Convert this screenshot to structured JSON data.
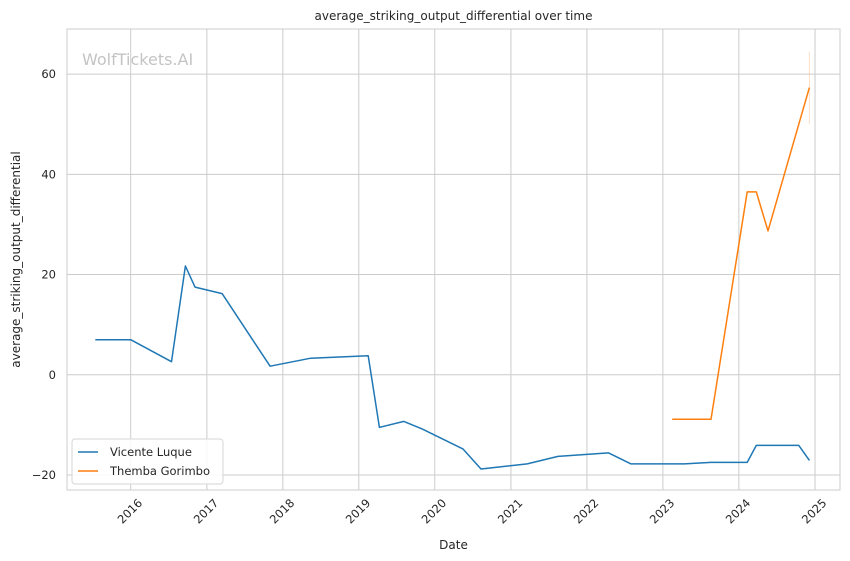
{
  "chart_data": {
    "type": "line",
    "title": "average_striking_output_differential over time",
    "xlabel": "Date",
    "ylabel": "average_striking_output_differential",
    "watermark": "WolfTickets.AI",
    "x_ticks": [
      "2016",
      "2017",
      "2018",
      "2019",
      "2020",
      "2021",
      "2022",
      "2023",
      "2024",
      "2025"
    ],
    "y_ticks": [
      -20,
      0,
      20,
      40,
      60
    ],
    "xlim": [
      "2015-03-01",
      "2025-05-01"
    ],
    "ylim": [
      -23,
      69
    ],
    "grid": true,
    "legend_position": "lower-left",
    "series": [
      {
        "name": "Vicente Luque",
        "color": "#1f77b4",
        "points": [
          [
            "2015-07-15",
            7.0
          ],
          [
            "2016-01-01",
            7.0
          ],
          [
            "2016-07-15",
            2.6
          ],
          [
            "2016-09-20",
            21.7
          ],
          [
            "2016-11-05",
            17.5
          ],
          [
            "2017-03-15",
            16.2
          ],
          [
            "2017-11-01",
            1.7
          ],
          [
            "2018-05-15",
            3.3
          ],
          [
            "2019-02-15",
            3.8
          ],
          [
            "2019-04-10",
            -10.5
          ],
          [
            "2019-08-05",
            -9.3
          ],
          [
            "2019-11-01",
            -10.8
          ],
          [
            "2020-05-15",
            -14.8
          ],
          [
            "2020-08-10",
            -18.8
          ],
          [
            "2021-03-20",
            -17.8
          ],
          [
            "2021-08-15",
            -16.3
          ],
          [
            "2022-04-15",
            -15.6
          ],
          [
            "2022-08-01",
            -17.8
          ],
          [
            "2023-04-15",
            -17.8
          ],
          [
            "2023-08-20",
            -17.5
          ],
          [
            "2024-02-10",
            -17.5
          ],
          [
            "2024-03-25",
            -14.1
          ],
          [
            "2024-10-15",
            -14.1
          ],
          [
            "2024-12-05",
            -17.1
          ]
        ]
      },
      {
        "name": "Themba Gorimbo",
        "color": "#ff7f0e",
        "points": [
          [
            "2023-02-15",
            -8.9
          ],
          [
            "2023-08-20",
            -8.9
          ],
          [
            "2024-02-10",
            36.5
          ],
          [
            "2024-03-25",
            36.5
          ],
          [
            "2024-05-20",
            28.7
          ],
          [
            "2024-10-15",
            50.0
          ],
          [
            "2024-12-05",
            57.3
          ]
        ]
      }
    ]
  }
}
